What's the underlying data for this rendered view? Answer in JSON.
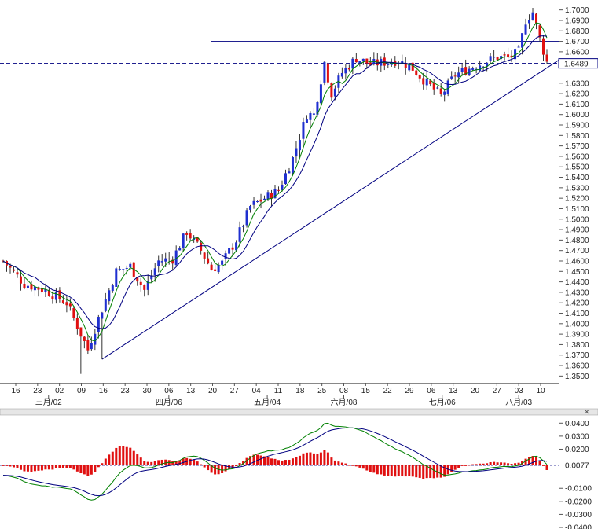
{
  "chart_data": [
    {
      "type": "candlestick",
      "title": "",
      "y_ticks": [
        "1.7000",
        "1.6900",
        "1.6800",
        "1.6700",
        "1.6600",
        "1.6300",
        "1.6200",
        "1.6100",
        "1.6000",
        "1.5900",
        "1.5800",
        "1.5700",
        "1.5600",
        "1.5500",
        "1.5400",
        "1.5300",
        "1.5200",
        "1.5100",
        "1.5000",
        "1.4900",
        "1.4800",
        "1.4700",
        "1.4600",
        "1.4500",
        "1.4400",
        "1.4300",
        "1.4200",
        "1.4100",
        "1.4000",
        "1.3900",
        "1.3800",
        "1.3700",
        "1.3600",
        "1.3500"
      ],
      "ylim": [
        1.345,
        1.705
      ],
      "current_price": "1.6489",
      "x_ticks": [
        "16",
        "23",
        "02",
        "09",
        "16",
        "23",
        "30",
        "06",
        "13",
        "20",
        "27",
        "04",
        "11",
        "18",
        "25",
        "08",
        "15",
        "22",
        "29",
        "06",
        "13",
        "20",
        "27",
        "03",
        "10"
      ],
      "month_labels": [
        "三月/02",
        "四月/06",
        "五月/04",
        "六月/08",
        "七月/06",
        "八月/03"
      ],
      "resistance_level": 1.67,
      "trendline": {
        "start_price": 1.366,
        "end_price": 1.652
      },
      "colors": {
        "up": "#1f2fd0",
        "down": "#e01010",
        "ma_fast": "#008000",
        "ma_slow": "#000080",
        "level": "#000080",
        "price_tag": "#000080"
      }
    },
    {
      "type": "macd",
      "y_ticks": [
        "0.0400",
        "0.0300",
        "0.0200",
        "-0.0100",
        "-0.0200",
        "-0.0300",
        "-0.0400"
      ],
      "ylim": [
        -0.04,
        0.045
      ],
      "current_value": "0.0077",
      "colors": {
        "histogram": "#e01010",
        "signal_fast": "#008000",
        "signal_slow": "#000080"
      }
    }
  ]
}
